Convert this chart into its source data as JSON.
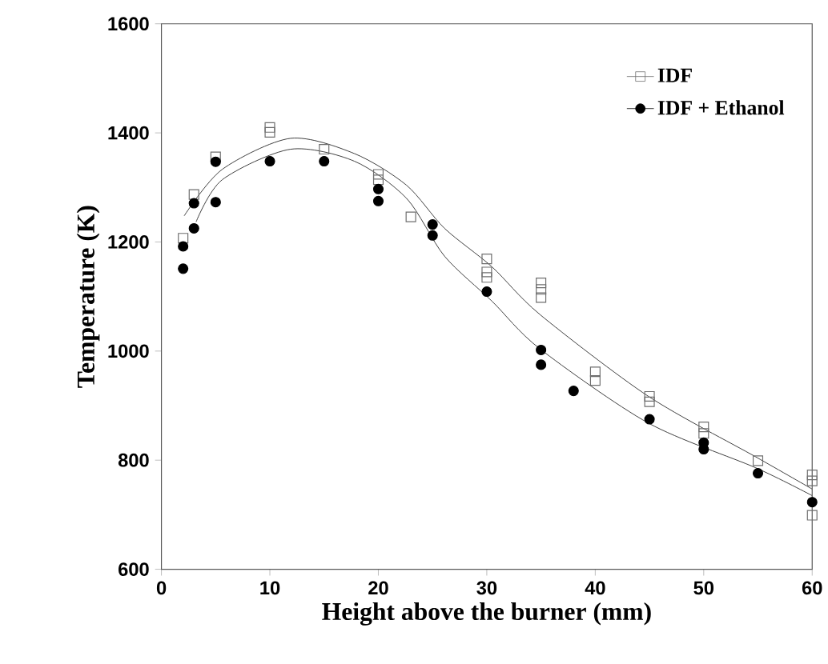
{
  "chart_data": {
    "type": "scatter",
    "xlabel": "Height above the burner (mm)",
    "ylabel": "Temperature (K)",
    "xlim": [
      0,
      60
    ],
    "ylim": [
      600,
      1600
    ],
    "xticks": [
      0,
      10,
      20,
      30,
      40,
      50,
      60
    ],
    "yticks": [
      600,
      800,
      1000,
      1200,
      1400,
      1600
    ],
    "legend": "top right",
    "grid": false,
    "series": [
      {
        "name": "IDF",
        "marker": "square",
        "color": "#6e6e6e",
        "x": [
          2,
          3,
          5,
          10,
          10,
          15,
          20,
          20,
          23,
          30,
          30,
          30,
          35,
          35,
          35,
          40,
          40,
          45,
          45,
          50,
          50,
          55,
          60,
          60,
          60
        ],
        "values": [
          1207,
          1287,
          1356,
          1410,
          1401,
          1370,
          1324,
          1314,
          1246,
          1169,
          1145,
          1135,
          1125,
          1113,
          1098,
          962,
          946,
          917,
          907,
          861,
          849,
          799,
          773,
          762,
          699
        ]
      },
      {
        "name": "IDF + Ethanol",
        "marker": "circle",
        "color": "#000000",
        "x": [
          2,
          2,
          3,
          3,
          5,
          5,
          10,
          15,
          20,
          20,
          25,
          25,
          30,
          35,
          35,
          38,
          45,
          50,
          50,
          55,
          60
        ],
        "values": [
          1192,
          1151,
          1271,
          1225,
          1347,
          1273,
          1348,
          1348,
          1297,
          1275,
          1232,
          1212,
          1109,
          1002,
          975,
          927,
          875,
          832,
          820,
          776,
          723
        ]
      },
      {
        "type": "line",
        "color": "#3c3c3c",
        "x": [
          2.1,
          5.6,
          11.9,
          17.8,
          22.6,
          26.1,
          30.5,
          34.9,
          44.9,
          54.8,
          60
        ],
        "values": [
          1248,
          1333,
          1390,
          1362,
          1304,
          1225,
          1154,
          1067,
          917,
          806,
          747
        ]
      },
      {
        "type": "line",
        "color": "#3c3c3c",
        "x": [
          3.2,
          5.6,
          11.9,
          17.8,
          22.6,
          26.1,
          30.5,
          34.9,
          44.9,
          54.8,
          60
        ],
        "values": [
          1237,
          1314,
          1370,
          1348,
          1280,
          1174,
          1091,
          1004,
          868,
          786,
          735
        ]
      }
    ]
  }
}
